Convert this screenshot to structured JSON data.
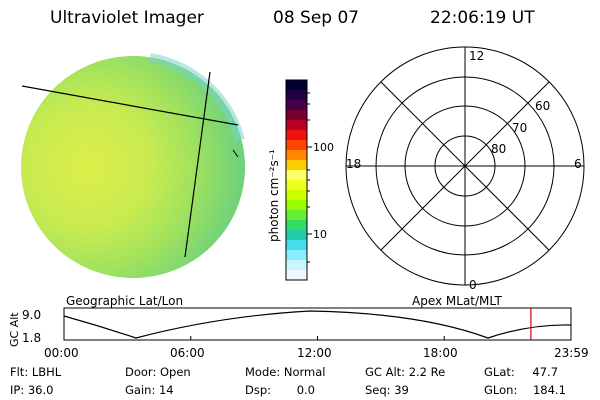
{
  "header": {
    "instrument": "Ultraviolet Imager",
    "date": "08 Sep 07",
    "time": "22:06:19 UT"
  },
  "colorbar": {
    "unit_label": "photon cm⁻²s⁻¹",
    "ticks": [
      "100",
      "10"
    ],
    "colors": [
      "#000033",
      "#220044",
      "#440044",
      "#770033",
      "#bb0022",
      "#ee1111",
      "#ff4400",
      "#ff8800",
      "#ffcc00",
      "#ffff66",
      "#eeff22",
      "#ccff00",
      "#99ff00",
      "#66ee33",
      "#33dd66",
      "#22ccaa",
      "#44ddee",
      "#88eeff",
      "#ccf4ff",
      "#eef8ff"
    ]
  },
  "polar_grid": {
    "mlat_labels": [
      "60",
      "70",
      "80"
    ],
    "mlt_labels": {
      "top": "12",
      "left": "18",
      "right": "6",
      "bottom": "0"
    }
  },
  "orbit_plot": {
    "left_label": "Geographic Lat/Lon",
    "right_label": "Apex  MLat/MLT",
    "y_axis_label": "GC Alt",
    "y_ticks": [
      "9.0",
      "1.8"
    ],
    "x_ticks": [
      "00:00",
      "06:00",
      "12:00",
      "18:00",
      "23:59"
    ],
    "current_time_fraction": 0.921,
    "marker_color": "#cc0000"
  },
  "status": {
    "row1": [
      {
        "label": "Flt:",
        "value": "LBHL"
      },
      {
        "label": "Door:",
        "value": "Open"
      },
      {
        "label": "Mode:",
        "value": "Normal"
      },
      {
        "label": "GC Alt:",
        "value": "2.2 Re"
      },
      {
        "label": "GLat:",
        "value": "47.7"
      }
    ],
    "row2": [
      {
        "label": "IP:",
        "value": "36.0"
      },
      {
        "label": "Gain:",
        "value": "14"
      },
      {
        "label": "Dsp:",
        "value": "0.0"
      },
      {
        "label": "Seq:",
        "value": "39"
      },
      {
        "label": "GLon:",
        "value": "184.1"
      }
    ]
  }
}
